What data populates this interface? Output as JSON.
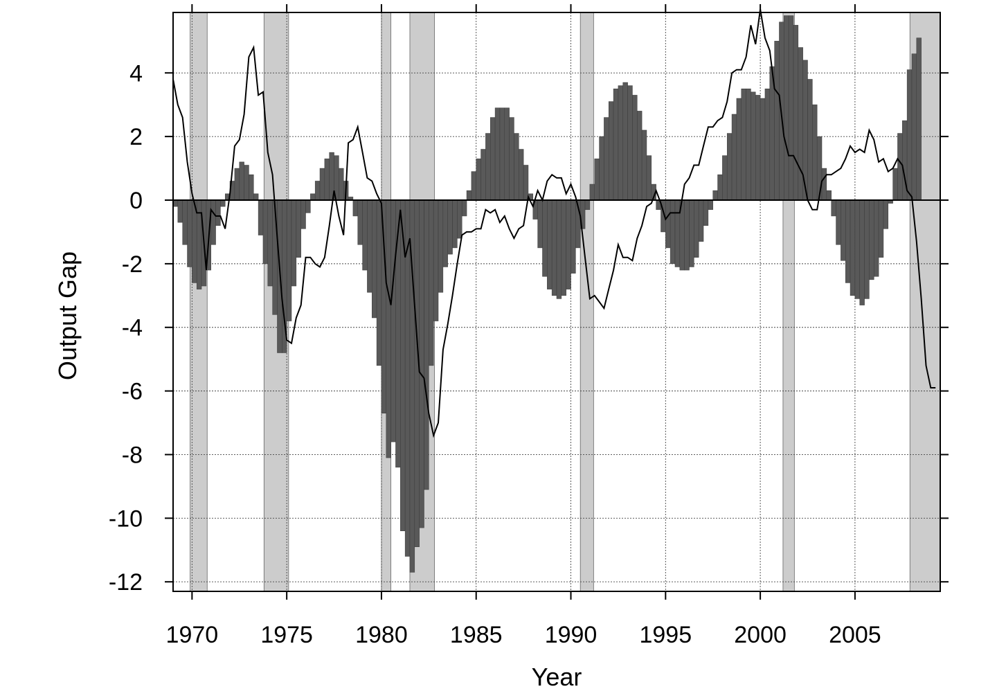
{
  "chart_data": {
    "type": "bar",
    "xlabel": "Year",
    "ylabel": "Output Gap",
    "xlim": [
      1969.0,
      2009.5
    ],
    "ylim": [
      -12.3,
      5.9
    ],
    "grid": true,
    "x_ticks": [
      1970,
      1975,
      1980,
      1985,
      1990,
      1995,
      2000,
      2005
    ],
    "x_tick_labels": [
      "1970",
      "1975",
      "1980",
      "1985",
      "1990",
      "1995",
      "2000",
      "2005"
    ],
    "y_ticks": [
      4,
      2,
      0,
      -2,
      -4,
      -6,
      -8,
      -10,
      -12
    ],
    "y_tick_labels": [
      "4",
      "2",
      "0",
      "-2",
      "-4",
      "-6",
      "-8",
      "-10",
      "-12"
    ],
    "recessions": [
      [
        1969.9,
        1970.8
      ],
      [
        1973.8,
        1975.1
      ],
      [
        1980.0,
        1980.5
      ],
      [
        1981.5,
        1982.8
      ],
      [
        1990.5,
        1991.2
      ],
      [
        2001.2,
        2001.8
      ],
      [
        2007.9,
        2009.5
      ]
    ],
    "colors": {
      "bars": "#595959",
      "recession_shading": "#cccccc",
      "line": "#000000",
      "grid": "#444444"
    },
    "series": [
      {
        "type": "bar",
        "x_start": 1969.0,
        "x_step": 0.25,
        "values": [
          -0.2,
          -0.7,
          -1.4,
          -2.1,
          -2.6,
          -2.8,
          -2.7,
          -2.2,
          -1.4,
          -0.8,
          -0.2,
          0.2,
          0.6,
          1.0,
          1.2,
          1.1,
          0.8,
          0.2,
          -1.1,
          -2.0,
          -2.7,
          -3.6,
          -4.8,
          -4.8,
          -3.8,
          -2.7,
          -1.8,
          -0.9,
          -0.4,
          0.2,
          0.6,
          1.0,
          1.3,
          1.5,
          1.4,
          1.0,
          0.6,
          0.1,
          -0.5,
          -1.4,
          -2.2,
          -2.9,
          -3.7,
          -5.2,
          -6.7,
          -8.1,
          -7.6,
          -8.4,
          -10.4,
          -11.2,
          -11.7,
          -10.9,
          -10.3,
          -9.1,
          -5.2,
          -3.8,
          -2.9,
          -2.1,
          -1.7,
          -1.5,
          -1.2,
          -0.5,
          0.3,
          0.9,
          1.3,
          1.6,
          2.1,
          2.6,
          2.9,
          2.9,
          2.9,
          2.6,
          2.1,
          1.6,
          1.1,
          0.2,
          -0.6,
          -1.5,
          -2.4,
          -2.8,
          -3.0,
          -3.1,
          -3.0,
          -2.8,
          -2.3,
          -1.5,
          -0.9,
          -0.3,
          0.5,
          1.3,
          2.0,
          2.6,
          3.1,
          3.5,
          3.6,
          3.7,
          3.6,
          3.3,
          2.8,
          2.2,
          1.4,
          0.5,
          -0.3,
          -1.0,
          -1.5,
          -2.0,
          -2.1,
          -2.2,
          -2.2,
          -2.1,
          -1.8,
          -1.3,
          -0.8,
          -0.3,
          0.3,
          0.8,
          1.4,
          2.1,
          2.7,
          3.2,
          3.5,
          3.5,
          3.4,
          3.3,
          3.2,
          3.5,
          4.2,
          5.0,
          5.6,
          5.8,
          5.8,
          5.5,
          4.8,
          4.4,
          3.8,
          3.0,
          2.0,
          1.0,
          0.3,
          -0.5,
          -1.4,
          -1.9,
          -2.6,
          -3.0,
          -3.1,
          -3.3,
          -3.1,
          -2.5,
          -2.4,
          -1.8,
          -0.9,
          -0.1,
          1.0,
          2.1,
          2.5,
          4.1,
          4.6,
          5.1
        ]
      },
      {
        "type": "line",
        "x_start": 1969.0,
        "x_step": 0.25,
        "values": [
          3.8,
          3.0,
          2.6,
          1.2,
          0.2,
          -0.4,
          -0.4,
          -2.2,
          -0.3,
          -0.5,
          -0.5,
          -0.9,
          0.2,
          1.7,
          1.9,
          2.7,
          4.5,
          4.8,
          3.3,
          3.4,
          1.5,
          0.8,
          -1.2,
          -3.1,
          -4.4,
          -4.5,
          -3.7,
          -3.3,
          -1.8,
          -1.8,
          -2.0,
          -2.1,
          -1.8,
          -0.8,
          0.3,
          -0.5,
          -1.1,
          1.8,
          1.9,
          2.3,
          1.5,
          0.7,
          0.6,
          0.2,
          -0.1,
          -2.6,
          -3.3,
          -1.7,
          -0.3,
          -1.8,
          -1.2,
          -3.3,
          -5.4,
          -5.6,
          -6.7,
          -7.4,
          -7.0,
          -4.7,
          -3.9,
          -3.0,
          -2.0,
          -1.1,
          -1.0,
          -1.0,
          -0.9,
          -0.9,
          -0.3,
          -0.4,
          -0.3,
          -0.7,
          -0.5,
          -0.9,
          -1.2,
          -0.9,
          -0.8,
          0.1,
          -0.2,
          0.3,
          0.0,
          0.6,
          0.8,
          0.7,
          0.7,
          0.2,
          0.5,
          0.1,
          -0.5,
          -1.8,
          -3.1,
          -3.0,
          -3.2,
          -3.4,
          -2.8,
          -2.2,
          -1.4,
          -1.8,
          -1.8,
          -1.9,
          -1.2,
          -0.8,
          -0.2,
          -0.1,
          0.3,
          -0.1,
          -0.6,
          -0.4,
          -0.4,
          -0.4,
          0.5,
          0.7,
          1.1,
          1.1,
          1.7,
          2.3,
          2.3,
          2.5,
          2.6,
          3.1,
          4.0,
          4.1,
          4.1,
          4.5,
          5.5,
          4.9,
          6.0,
          5.1,
          4.7,
          3.5,
          3.3,
          2.0,
          1.4,
          1.4,
          1.1,
          0.8,
          0.0,
          -0.3,
          -0.3,
          0.6,
          0.8,
          0.8,
          0.9,
          1.0,
          1.3,
          1.7,
          1.5,
          1.6,
          1.5,
          2.2,
          1.9,
          1.2,
          1.3,
          0.9,
          1.0,
          1.3,
          1.1,
          0.3,
          0.1,
          -1.3,
          -3.1,
          -5.2,
          -5.9,
          -5.9
        ]
      }
    ]
  }
}
